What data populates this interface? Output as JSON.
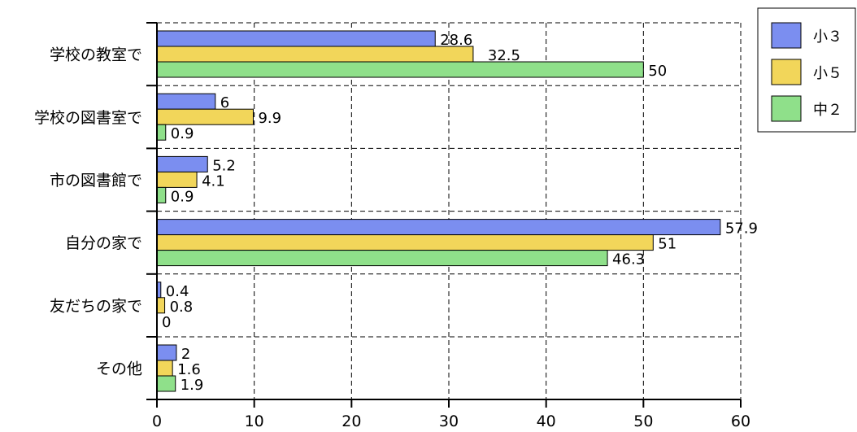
{
  "chart_data": {
    "type": "bar",
    "orientation": "horizontal",
    "categories": [
      "学校の教室で",
      "学校の図書室で",
      "市の図書館で",
      "自分の家で",
      "友だちの家で",
      "その他"
    ],
    "series": [
      {
        "name": "小３",
        "color": "#7b8ef0",
        "values": [
          28.6,
          6,
          5.2,
          57.9,
          0.4,
          2
        ]
      },
      {
        "name": "小５",
        "color": "#f2d65a",
        "values": [
          32.5,
          9.9,
          4.1,
          51,
          0.8,
          1.6
        ]
      },
      {
        "name": "中２",
        "color": "#8fe08a",
        "values": [
          50,
          0.9,
          0.9,
          46.3,
          0,
          1.9
        ]
      }
    ],
    "value_labels": [
      [
        "28.6",
        "6",
        "5.2",
        "57.9",
        "0.4",
        "2"
      ],
      [
        "32.5",
        "9.9",
        "4.1",
        "51",
        "0.8",
        "1.6"
      ],
      [
        "50",
        "0.9",
        "0.9",
        "46.3",
        "0",
        "1.9"
      ]
    ],
    "xlim": [
      0,
      60
    ],
    "xticks": [
      0,
      10,
      20,
      30,
      40,
      50,
      60
    ],
    "xtick_labels": [
      "0",
      "10",
      "20",
      "30",
      "40",
      "50",
      "60"
    ],
    "grid": true,
    "grid_style": "dashed",
    "legend_position": "top-right",
    "title": "",
    "xlabel": "",
    "ylabel": ""
  }
}
